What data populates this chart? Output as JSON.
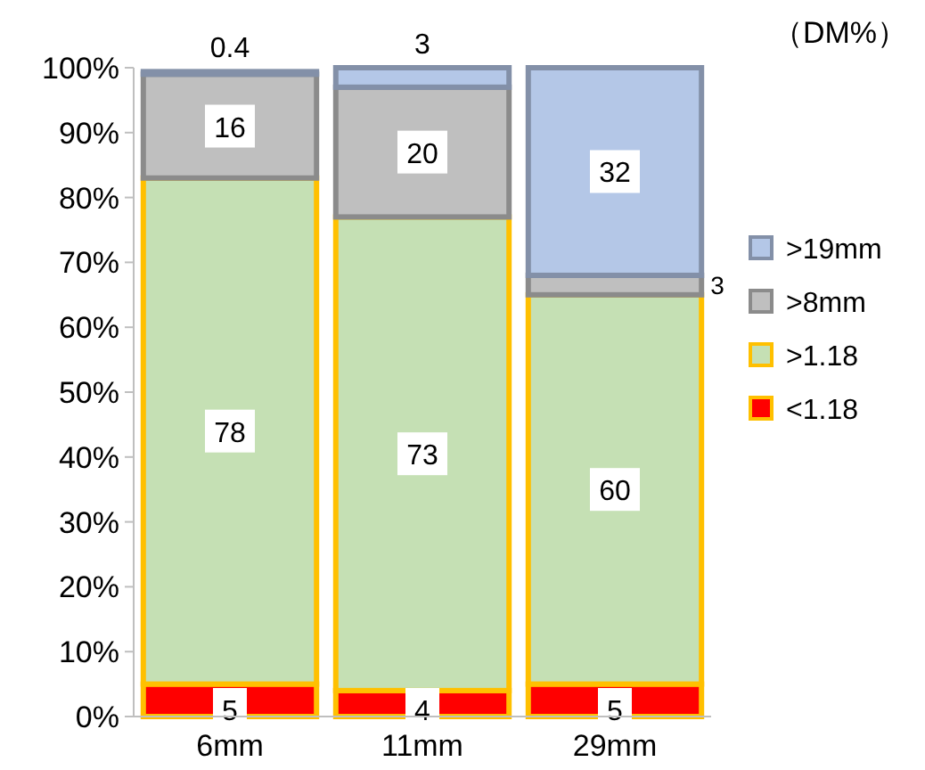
{
  "chart_data": {
    "type": "bar",
    "stacked": true,
    "categories": [
      "6mm",
      "11mm",
      "29mm"
    ],
    "series": [
      {
        "name": "<1.18",
        "color": "#ff0000",
        "values": [
          5,
          4,
          5
        ]
      },
      {
        "name": ">1.18",
        "color": "#c5e0b4",
        "values": [
          78,
          73,
          60
        ]
      },
      {
        "name": ">8mm",
        "color": "#bfbfbf",
        "values": [
          16,
          20,
          3
        ]
      },
      {
        "name": ">19mm",
        "color": "#b4c7e7",
        "values": [
          0.4,
          3,
          32
        ]
      }
    ],
    "ylim": [
      0,
      100
    ],
    "yticks": [
      {
        "value": 0,
        "label": "0%"
      },
      {
        "value": 10,
        "label": "10%"
      },
      {
        "value": 20,
        "label": "20%"
      },
      {
        "value": 30,
        "label": "30%"
      },
      {
        "value": 40,
        "label": "40%"
      },
      {
        "value": 50,
        "label": "50%"
      },
      {
        "value": 60,
        "label": "60%"
      },
      {
        "value": 70,
        "label": "70%"
      },
      {
        "value": 80,
        "label": "80%"
      },
      {
        "value": 90,
        "label": "90%"
      },
      {
        "value": 100,
        "label": "100%"
      }
    ],
    "data_labels": true,
    "legend": "right",
    "annotations": [
      "（DM%）"
    ]
  }
}
